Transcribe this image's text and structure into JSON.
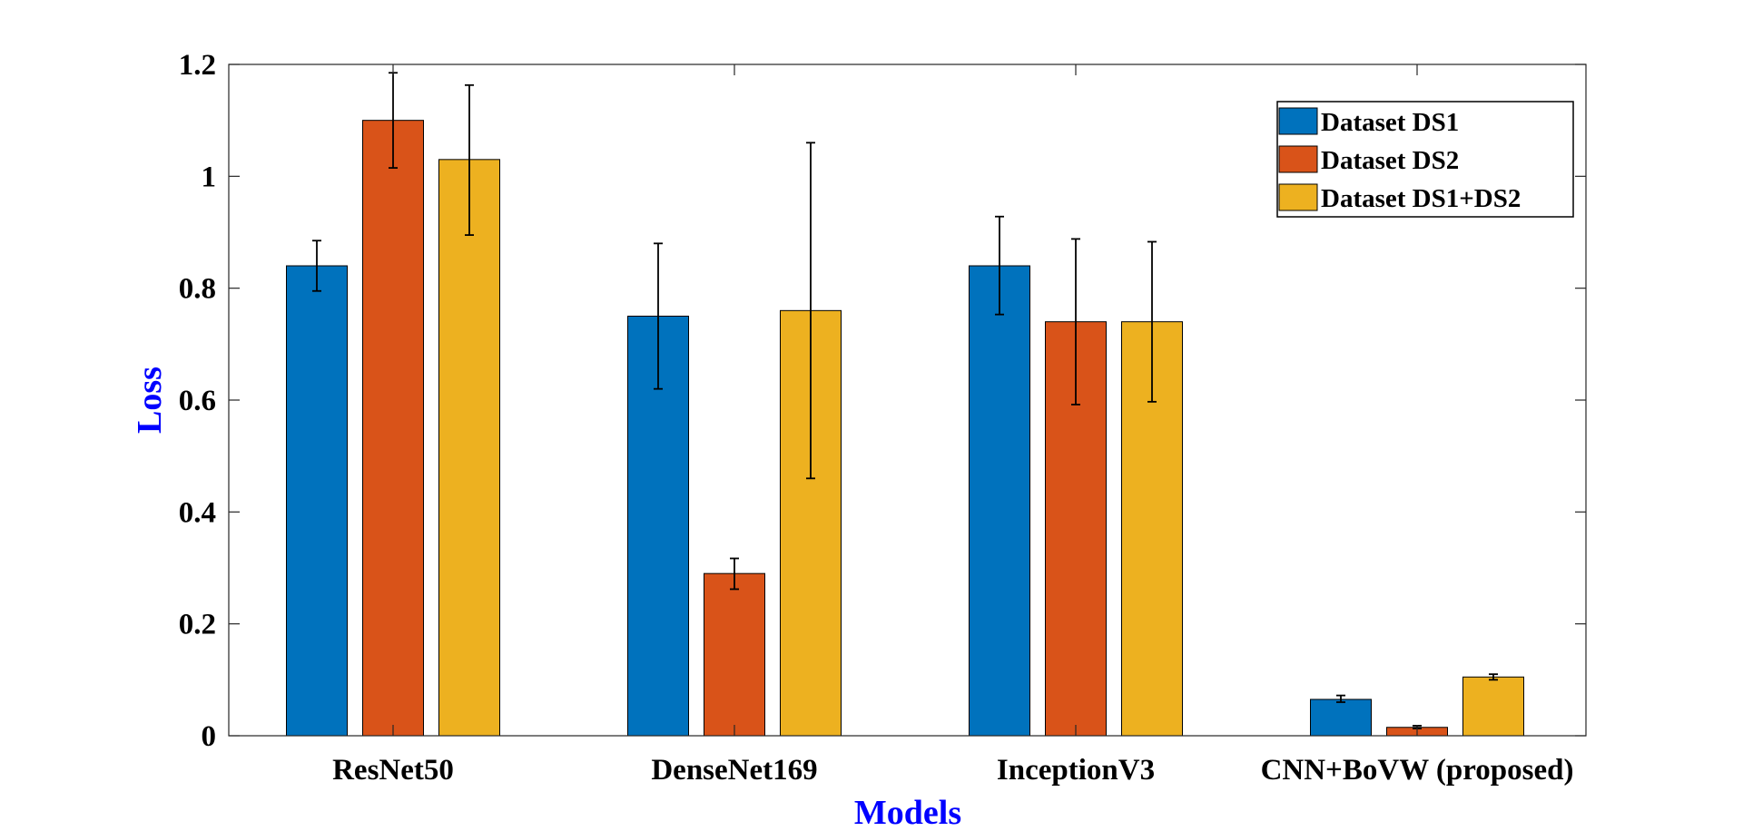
{
  "chart_data": {
    "type": "bar",
    "title": "",
    "xlabel": "Models",
    "ylabel": "Loss",
    "ylim": [
      0,
      1.2
    ],
    "yticks": [
      "0",
      "0.2",
      "0.4",
      "0.6",
      "0.8",
      "1",
      "1.2"
    ],
    "grid": false,
    "legend_position": "top-right",
    "categories": [
      "ResNet50",
      "DenseNet169",
      "InceptionV3",
      "CNN+BoVW (proposed)"
    ],
    "series": [
      {
        "name": "Dataset DS1",
        "color": "#0072BD",
        "values": [
          0.84,
          0.75,
          0.84,
          0.065
        ],
        "error_low": [
          0.795,
          0.62,
          0.753,
          0.06
        ],
        "error_high": [
          0.885,
          0.88,
          0.928,
          0.072
        ]
      },
      {
        "name": "Dataset DS2",
        "color": "#D95319",
        "values": [
          1.1,
          0.29,
          0.74,
          0.015
        ],
        "error_low": [
          1.015,
          0.262,
          0.592,
          0.013
        ],
        "error_high": [
          1.185,
          0.317,
          0.888,
          0.018
        ]
      },
      {
        "name": "Dataset DS1+DS2",
        "color": "#EDB120",
        "values": [
          1.03,
          0.76,
          0.74,
          0.105
        ],
        "error_low": [
          0.895,
          0.46,
          0.597,
          0.1
        ],
        "error_high": [
          1.163,
          1.06,
          0.883,
          0.11
        ]
      }
    ]
  }
}
